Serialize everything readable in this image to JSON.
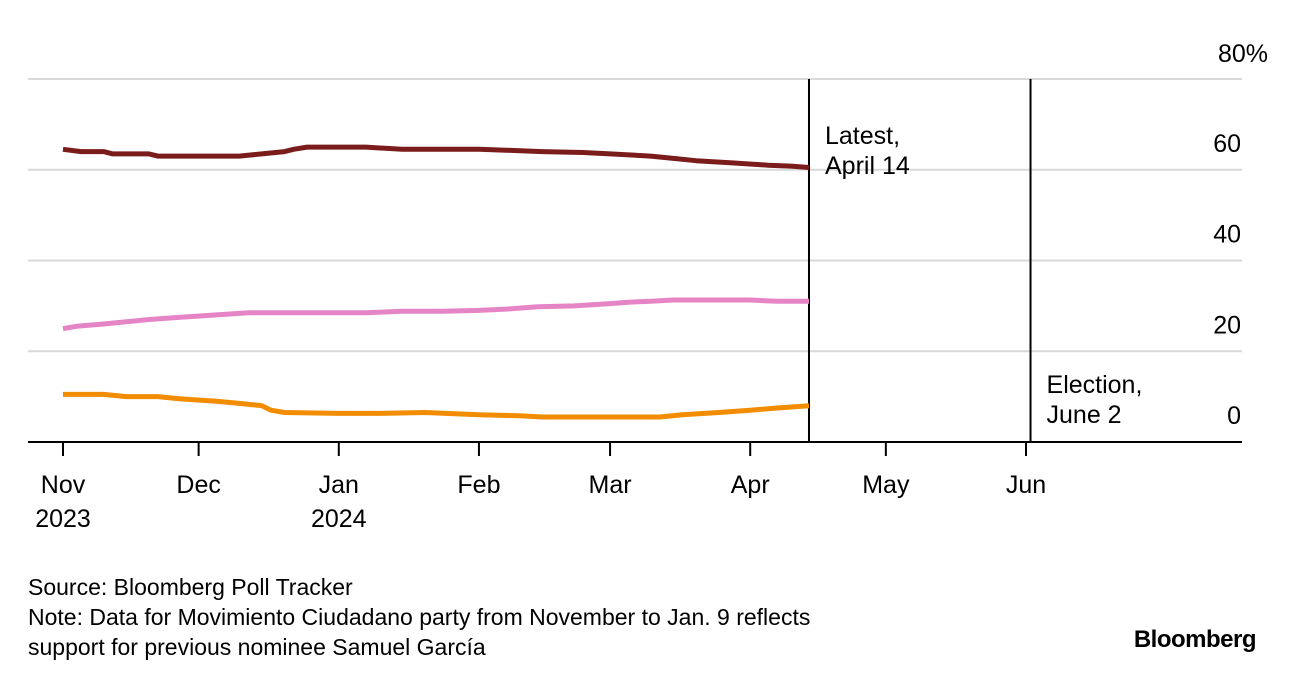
{
  "chart_data": {
    "type": "line",
    "y_unit_label": "80%",
    "ylim": [
      0,
      80
    ],
    "yticks": [
      {
        "value": 80,
        "label": "80%"
      },
      {
        "value": 60,
        "label": "60"
      },
      {
        "value": 40,
        "label": "40"
      },
      {
        "value": 20,
        "label": "20"
      },
      {
        "value": 0,
        "label": "0"
      }
    ],
    "xlim": [
      "2023-10-25",
      "2024-06-30"
    ],
    "xticks": [
      {
        "date": "2023-11-01",
        "label": "Nov",
        "year": "2023"
      },
      {
        "date": "2023-12-01",
        "label": "Dec",
        "year": ""
      },
      {
        "date": "2024-01-01",
        "label": "Jan",
        "year": "2024"
      },
      {
        "date": "2024-02-01",
        "label": "Feb",
        "year": ""
      },
      {
        "date": "2024-03-01",
        "label": "Mar",
        "year": ""
      },
      {
        "date": "2024-04-01",
        "label": "Apr",
        "year": ""
      },
      {
        "date": "2024-05-01",
        "label": "May",
        "year": ""
      },
      {
        "date": "2024-06-01",
        "label": "Jun",
        "year": ""
      }
    ],
    "grid": true,
    "annotations": [
      {
        "date": "2024-04-14",
        "lines": [
          "Latest,",
          "April 14"
        ]
      },
      {
        "date": "2024-06-02",
        "lines": [
          "Election,",
          "June 2"
        ]
      }
    ],
    "series": [
      {
        "color": "#7a1c1c",
        "points": [
          [
            "2023-11-01",
            64.5
          ],
          [
            "2023-11-05",
            64.0
          ],
          [
            "2023-11-10",
            64.0
          ],
          [
            "2023-11-12",
            63.5
          ],
          [
            "2023-11-20",
            63.5
          ],
          [
            "2023-11-22",
            63.0
          ],
          [
            "2023-12-03",
            63.0
          ],
          [
            "2023-12-10",
            63.0
          ],
          [
            "2023-12-15",
            63.5
          ],
          [
            "2023-12-20",
            64.0
          ],
          [
            "2023-12-22",
            64.5
          ],
          [
            "2023-12-25",
            65.0
          ],
          [
            "2024-01-01",
            65.0
          ],
          [
            "2024-01-07",
            65.0
          ],
          [
            "2024-01-15",
            64.5
          ],
          [
            "2024-01-22",
            64.5
          ],
          [
            "2024-02-01",
            64.5
          ],
          [
            "2024-02-07",
            64.3
          ],
          [
            "2024-02-15",
            64.0
          ],
          [
            "2024-02-24",
            63.8
          ],
          [
            "2024-03-01",
            63.5
          ],
          [
            "2024-03-10",
            63.0
          ],
          [
            "2024-03-15",
            62.5
          ],
          [
            "2024-03-20",
            62.0
          ],
          [
            "2024-03-28",
            61.5
          ],
          [
            "2024-04-05",
            61.0
          ],
          [
            "2024-04-10",
            60.8
          ],
          [
            "2024-04-14",
            60.5
          ]
        ]
      },
      {
        "color": "#e585c6",
        "points": [
          [
            "2023-11-01",
            25.0
          ],
          [
            "2023-11-04",
            25.5
          ],
          [
            "2023-11-10",
            26.0
          ],
          [
            "2023-11-15",
            26.5
          ],
          [
            "2023-11-20",
            27.0
          ],
          [
            "2023-11-27",
            27.5
          ],
          [
            "2023-12-05",
            28.0
          ],
          [
            "2023-12-12",
            28.5
          ],
          [
            "2023-12-20",
            28.5
          ],
          [
            "2024-01-01",
            28.5
          ],
          [
            "2024-01-07",
            28.5
          ],
          [
            "2024-01-15",
            28.8
          ],
          [
            "2024-01-24",
            28.8
          ],
          [
            "2024-02-01",
            29.0
          ],
          [
            "2024-02-07",
            29.3
          ],
          [
            "2024-02-14",
            29.8
          ],
          [
            "2024-02-22",
            30.0
          ],
          [
            "2024-03-01",
            30.5
          ],
          [
            "2024-03-05",
            30.8
          ],
          [
            "2024-03-10",
            31.0
          ],
          [
            "2024-03-15",
            31.3
          ],
          [
            "2024-03-25",
            31.3
          ],
          [
            "2024-04-01",
            31.3
          ],
          [
            "2024-04-07",
            31.0
          ],
          [
            "2024-04-14",
            31.0
          ]
        ]
      },
      {
        "color": "#f28c00",
        "points": [
          [
            "2023-11-01",
            10.5
          ],
          [
            "2023-11-10",
            10.5
          ],
          [
            "2023-11-15",
            10.0
          ],
          [
            "2023-11-22",
            10.0
          ],
          [
            "2023-11-27",
            9.5
          ],
          [
            "2023-12-05",
            9.0
          ],
          [
            "2023-12-10",
            8.5
          ],
          [
            "2023-12-15",
            8.0
          ],
          [
            "2023-12-17",
            7.0
          ],
          [
            "2023-12-20",
            6.5
          ],
          [
            "2024-01-01",
            6.3
          ],
          [
            "2024-01-10",
            6.3
          ],
          [
            "2024-01-20",
            6.5
          ],
          [
            "2024-02-01",
            6.0
          ],
          [
            "2024-02-10",
            5.8
          ],
          [
            "2024-02-15",
            5.5
          ],
          [
            "2024-03-01",
            5.5
          ],
          [
            "2024-03-12",
            5.5
          ],
          [
            "2024-03-17",
            6.0
          ],
          [
            "2024-03-25",
            6.5
          ],
          [
            "2024-04-01",
            7.0
          ],
          [
            "2024-04-07",
            7.5
          ],
          [
            "2024-04-14",
            8.0
          ]
        ]
      }
    ]
  },
  "footer": {
    "source": "Source: Bloomberg Poll Tracker",
    "note_line1": "Note: Data for Movimiento Ciudadano party from November to Jan. 9 reflects",
    "note_line2": "support for previous nominee Samuel García"
  },
  "brand": "Bloomberg"
}
